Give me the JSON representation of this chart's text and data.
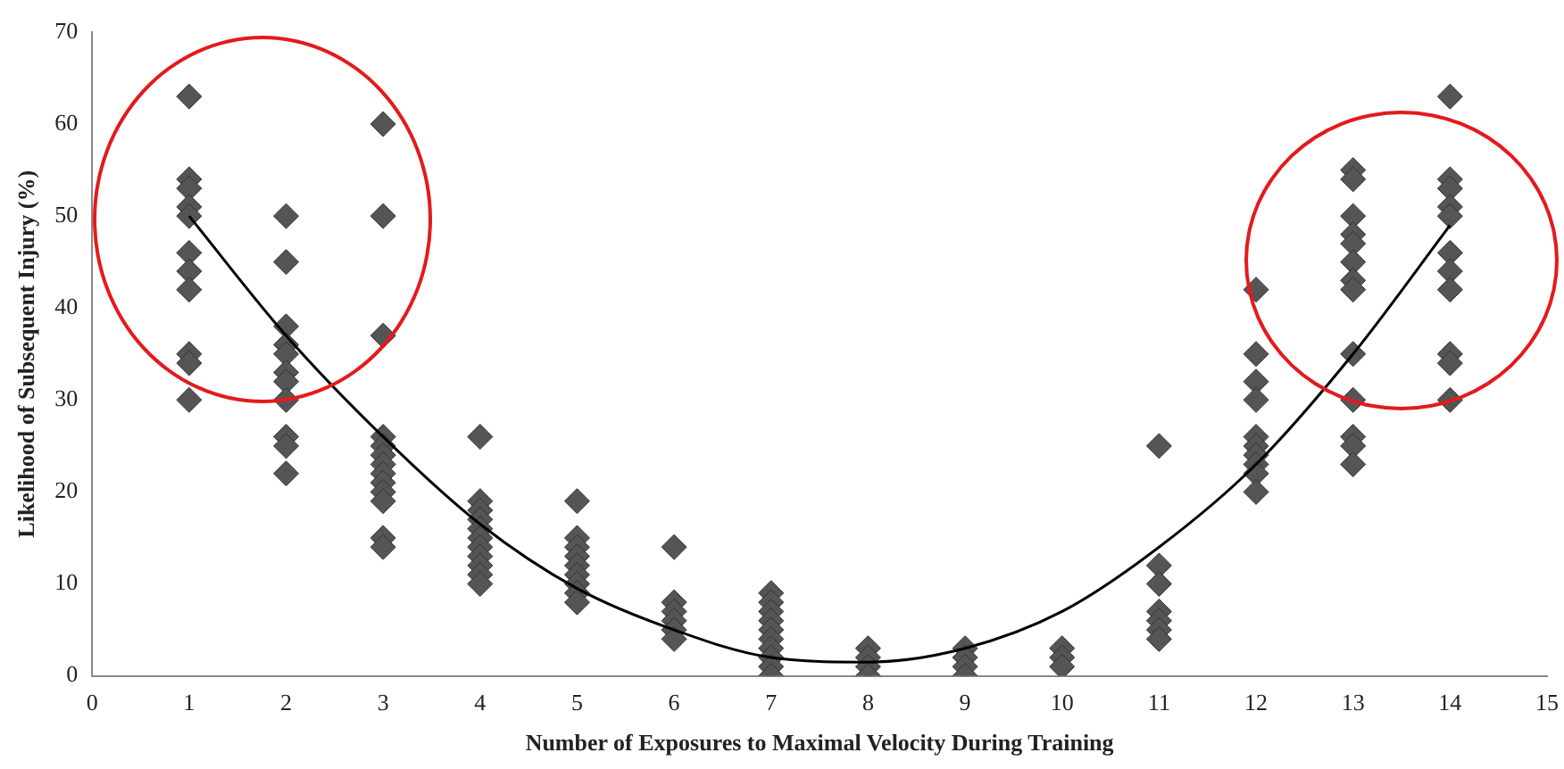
{
  "chart_data": {
    "type": "scatter",
    "xlabel": "Number of Exposures to Maximal Velocity During Training",
    "ylabel": "Likelihood of Subsequent Injury (%)",
    "xlim": [
      0,
      15
    ],
    "xticks": [
      0,
      1,
      2,
      3,
      4,
      5,
      6,
      7,
      8,
      9,
      10,
      11,
      12,
      13,
      14,
      15
    ],
    "ylim": [
      0,
      70
    ],
    "yticks": [
      0,
      10,
      20,
      30,
      40,
      50,
      60,
      70
    ],
    "grid": false,
    "legend": false,
    "marker": "diamond",
    "series": [
      {
        "color": "#555555",
        "x": [
          1,
          1,
          1,
          1,
          1,
          1,
          1,
          1,
          1,
          1,
          1,
          2,
          2,
          2,
          2,
          2,
          2,
          2,
          2,
          2,
          2,
          2,
          3,
          3,
          3,
          3,
          3,
          3,
          3,
          3,
          3,
          3,
          3,
          3,
          3,
          4,
          4,
          4,
          4,
          4,
          4,
          4,
          4,
          4,
          4,
          4,
          5,
          5,
          5,
          5,
          5,
          5,
          5,
          5,
          5,
          6,
          6,
          6,
          6,
          6,
          6,
          7,
          7,
          7,
          7,
          7,
          7,
          7,
          7,
          7,
          7,
          8,
          8,
          8,
          8,
          9,
          9,
          9,
          9,
          10,
          10,
          10,
          11,
          11,
          11,
          11,
          11,
          11,
          11,
          12,
          12,
          12,
          12,
          12,
          12,
          12,
          12,
          12,
          12,
          13,
          13,
          13,
          13,
          13,
          13,
          13,
          13,
          13,
          13,
          13,
          13,
          13,
          14,
          14,
          14,
          14,
          14,
          14,
          14,
          14,
          14,
          14,
          14
        ],
        "values": [
          63,
          54,
          53,
          51,
          50,
          46,
          44,
          42,
          35,
          34,
          30,
          50,
          45,
          38,
          36,
          35,
          33,
          32,
          30,
          26,
          25,
          22,
          60,
          50,
          37,
          26,
          25,
          24,
          23,
          22,
          21,
          20,
          19,
          15,
          14,
          26,
          19,
          18,
          17,
          16,
          15,
          14,
          13,
          12,
          11,
          10,
          19,
          15,
          14,
          13,
          12,
          11,
          10,
          9,
          8,
          14,
          8,
          7,
          6,
          5,
          4,
          9,
          8,
          7,
          6,
          5,
          4,
          3,
          2,
          1,
          0,
          3,
          2,
          1,
          0,
          3,
          2,
          1,
          0,
          3,
          2,
          1,
          25,
          12,
          10,
          7,
          6,
          5,
          4,
          42,
          35,
          32,
          30,
          26,
          25,
          24,
          23,
          22,
          20,
          55,
          54,
          50,
          48,
          47,
          45,
          43,
          42,
          35,
          30,
          26,
          25,
          23,
          63,
          54,
          53,
          51,
          50,
          46,
          44,
          42,
          35,
          34,
          30
        ]
      },
      {
        "type": "line",
        "color": "#000000",
        "marker": "none",
        "x": [
          1,
          2,
          3,
          4,
          5,
          6,
          7,
          8,
          9,
          10,
          11,
          12,
          13,
          14
        ],
        "values": [
          50,
          37,
          26,
          16.5,
          9.5,
          5,
          2,
          1.5,
          3,
          7,
          14,
          23,
          35,
          49
        ]
      }
    ]
  }
}
